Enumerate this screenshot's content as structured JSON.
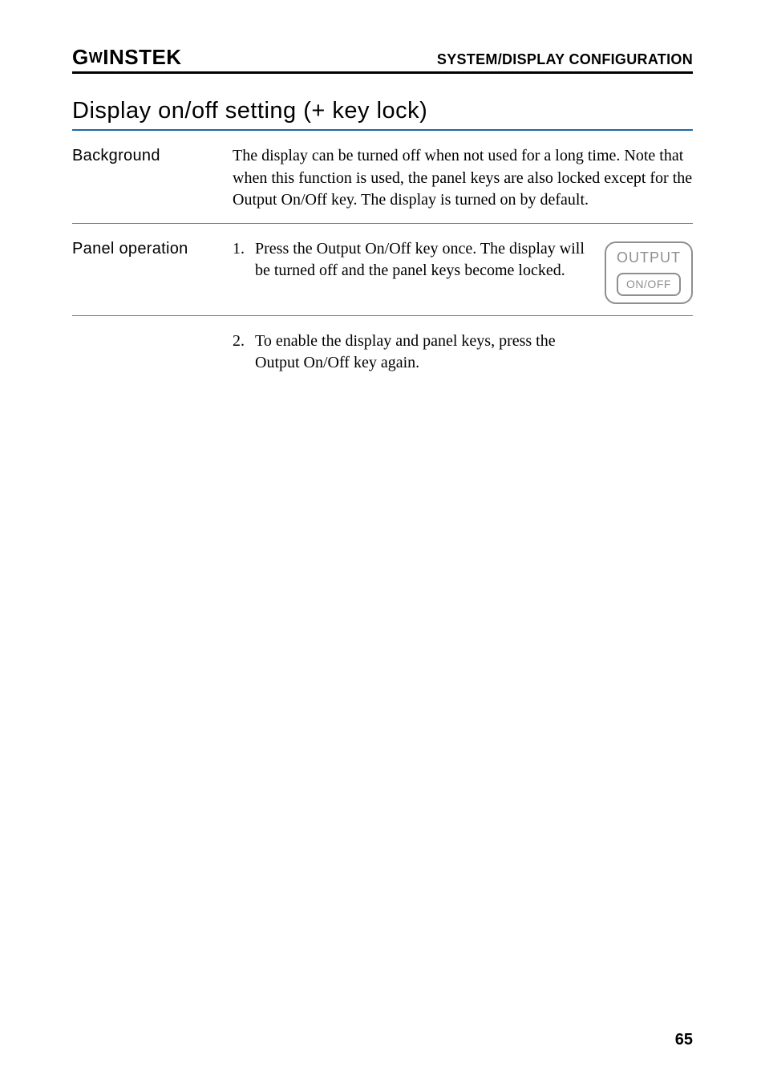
{
  "header": {
    "brand_prefix": "G",
    "brand_mid": "ᵜ",
    "brand_rest": "INSTEK",
    "section": "SYSTEM/DISPLAY CONFIGURATION"
  },
  "title": "Display on/off setting (+ key lock)",
  "background": {
    "label": "Background",
    "text": "The display can be turned off when not used for a long time. Note that when this function is used, the panel keys are also locked except for the Output On/Off key. The display is turned on by default."
  },
  "panel": {
    "label": "Panel operation",
    "step1_num": "1.",
    "step1_text": "Press the Output On/Off key once. The display will be turned off and the panel keys become locked.",
    "step2_num": "2.",
    "step2_text": "To enable the display and panel keys, press the Output On/Off key again.",
    "key_top": "OUTPUT",
    "key_inner": "ON/OFF"
  },
  "page_number": "65",
  "colors": {
    "title_underline": "#1a6aa8",
    "key_gray": "#8f8f8f"
  }
}
